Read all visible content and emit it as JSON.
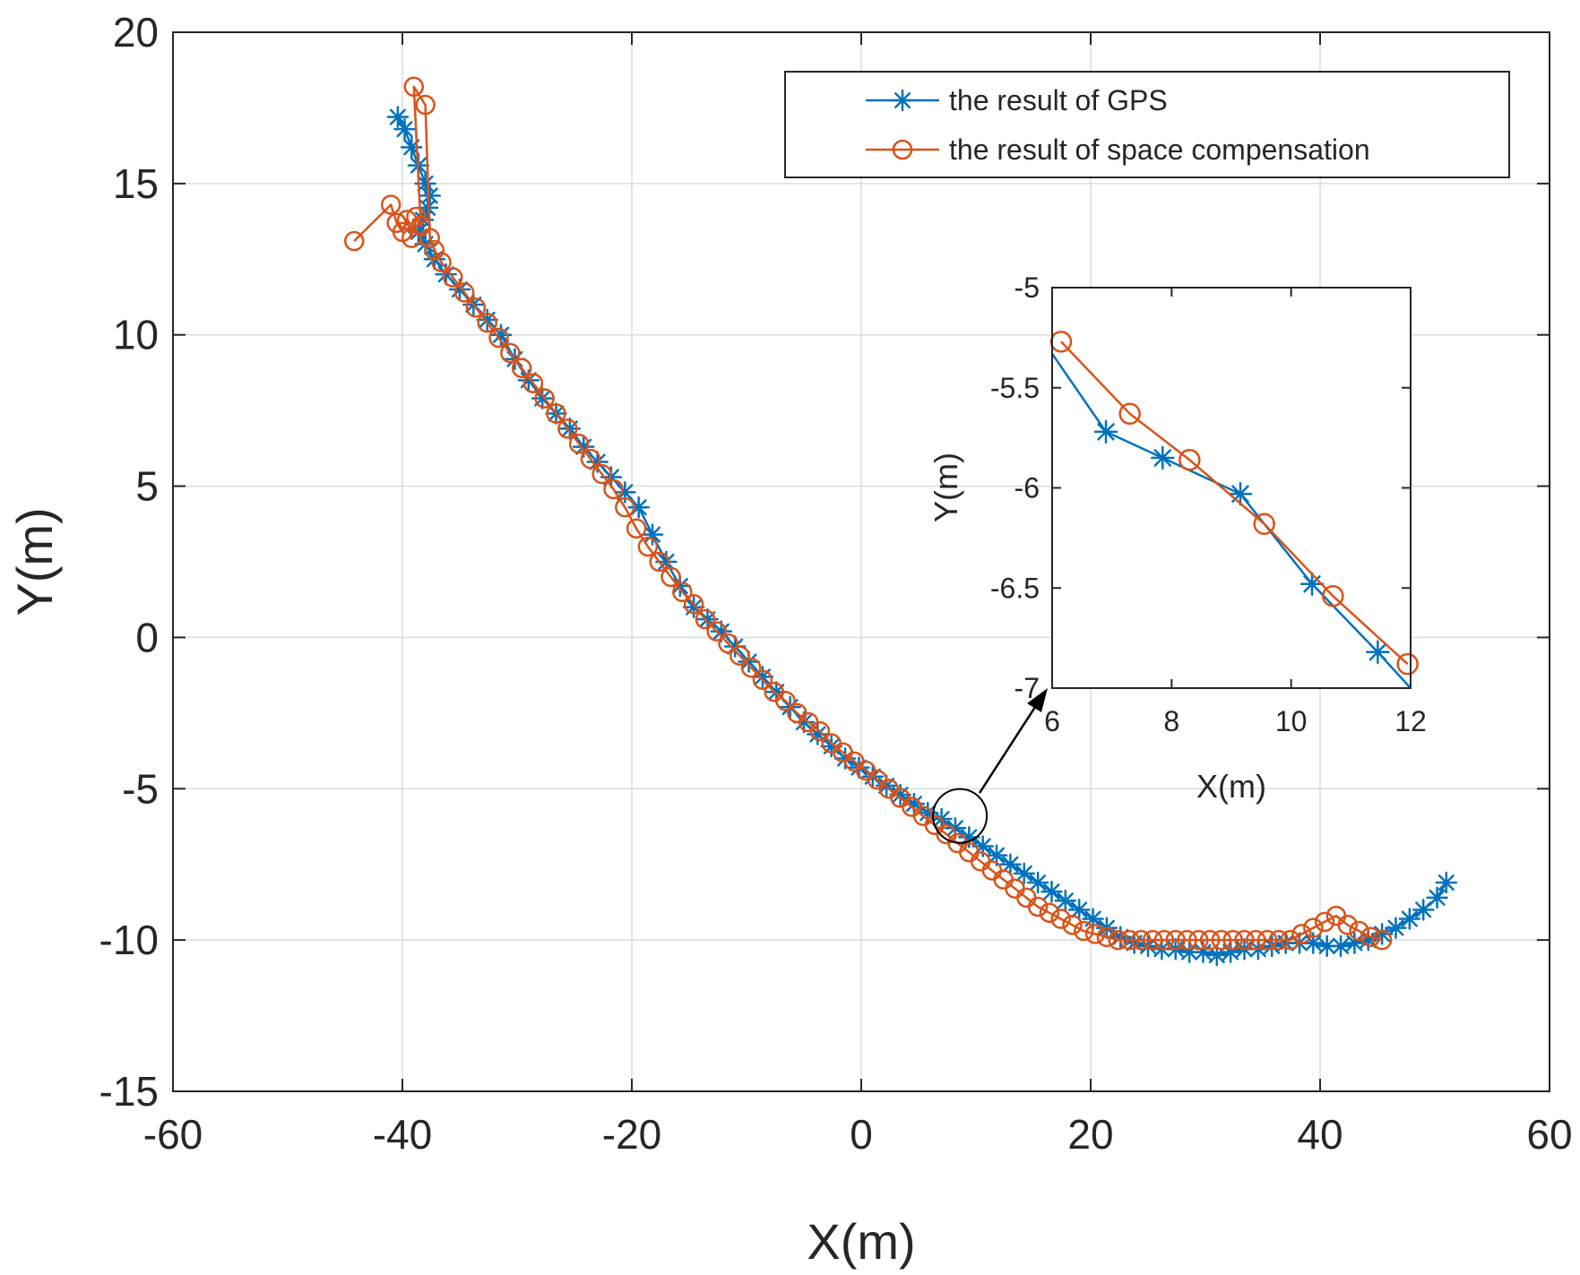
{
  "chart_data": [
    {
      "type": "line",
      "role": "main",
      "xlabel": "X(m)",
      "ylabel": "Y(m)",
      "xlim": [
        -60,
        60
      ],
      "ylim": [
        -15,
        20
      ],
      "xticks": [
        -60,
        -40,
        -20,
        0,
        20,
        40,
        60
      ],
      "yticks": [
        -15,
        -10,
        -5,
        0,
        5,
        10,
        15,
        20
      ],
      "grid": true,
      "legend": {
        "placement": "top-right"
      },
      "series": [
        {
          "name": "the result of GPS",
          "color": "#0072BD",
          "marker": "asterisk",
          "x": [
            -40.4,
            -39.8,
            -39.2,
            -38.6,
            -38.0,
            -37.6,
            -37.8,
            -38.2,
            -38.6,
            -38.0,
            -37.2,
            -36.2,
            -35.0,
            -33.8,
            -32.6,
            -31.4,
            -30.2,
            -29.0,
            -27.8,
            -26.6,
            -25.4,
            -24.2,
            -23.0,
            -21.8,
            -20.6,
            -19.4,
            -18.2,
            -17.0,
            -15.8,
            -14.6,
            -13.4,
            -12.2,
            -11.0,
            -9.8,
            -8.6,
            -7.4,
            -6.2,
            -5.0,
            -3.8,
            -2.6,
            -1.4,
            -0.2,
            1.0,
            2.2,
            3.4,
            4.6,
            5.8,
            7.0,
            8.2,
            9.4,
            10.6,
            11.8,
            13.0,
            14.2,
            15.4,
            16.6,
            17.8,
            19.0,
            20.2,
            21.4,
            22.6,
            23.8,
            25.0,
            26.2,
            27.4,
            28.6,
            29.8,
            31.0,
            32.2,
            33.4,
            34.6,
            35.8,
            37.0,
            38.2,
            39.4,
            40.6,
            41.8,
            43.0,
            44.2,
            45.4,
            46.6,
            47.8,
            49.0,
            50.2,
            51.0
          ],
          "y": [
            17.2,
            16.8,
            16.2,
            15.6,
            15.0,
            14.6,
            14.2,
            13.8,
            13.4,
            13.0,
            12.5,
            12.0,
            11.5,
            11.0,
            10.5,
            10.0,
            9.2,
            8.5,
            7.9,
            7.4,
            6.9,
            6.3,
            5.8,
            5.3,
            4.8,
            4.3,
            3.4,
            2.5,
            1.7,
            1.0,
            0.6,
            0.2,
            -0.3,
            -0.8,
            -1.3,
            -1.8,
            -2.3,
            -2.8,
            -3.2,
            -3.6,
            -4.0,
            -4.3,
            -4.6,
            -4.9,
            -5.2,
            -5.5,
            -5.8,
            -6.0,
            -6.3,
            -6.6,
            -6.9,
            -7.2,
            -7.5,
            -7.8,
            -8.1,
            -8.4,
            -8.7,
            -9.0,
            -9.3,
            -9.6,
            -9.9,
            -10.1,
            -10.2,
            -10.3,
            -10.3,
            -10.4,
            -10.4,
            -10.5,
            -10.4,
            -10.3,
            -10.3,
            -10.2,
            -10.1,
            -10.1,
            -10.1,
            -10.2,
            -10.2,
            -10.1,
            -10.0,
            -9.8,
            -9.6,
            -9.3,
            -9.0,
            -8.6,
            -8.1
          ]
        },
        {
          "name": "the result of space compensation",
          "color": "#D95319",
          "marker": "circle",
          "x": [
            -44.2,
            -41.0,
            -40.5,
            -40.0,
            -39.6,
            -39.2,
            -38.8,
            -38.4,
            -39.0,
            -38.0,
            -37.6,
            -37.2,
            -36.6,
            -35.6,
            -34.6,
            -33.6,
            -32.6,
            -31.6,
            -30.6,
            -29.6,
            -28.6,
            -27.6,
            -26.6,
            -25.6,
            -24.6,
            -23.6,
            -22.6,
            -21.6,
            -20.6,
            -19.6,
            -18.6,
            -17.6,
            -16.6,
            -15.6,
            -14.6,
            -13.6,
            -12.6,
            -11.6,
            -10.6,
            -9.6,
            -8.6,
            -7.6,
            -6.6,
            -5.6,
            -4.6,
            -3.6,
            -2.6,
            -1.6,
            -0.6,
            0.4,
            1.4,
            2.4,
            3.4,
            4.4,
            5.4,
            6.4,
            7.4,
            8.4,
            9.4,
            10.4,
            11.4,
            12.4,
            13.4,
            14.4,
            15.4,
            16.4,
            17.4,
            18.4,
            19.4,
            20.4,
            21.4,
            22.4,
            23.4,
            24.4,
            25.4,
            26.4,
            27.4,
            28.4,
            29.4,
            30.4,
            31.4,
            32.4,
            33.4,
            34.4,
            35.4,
            36.4,
            37.4,
            38.4,
            39.4,
            40.4,
            41.4,
            42.4,
            43.4,
            44.4,
            45.4
          ],
          "y": [
            13.1,
            14.3,
            13.7,
            13.4,
            13.8,
            13.2,
            13.9,
            13.6,
            18.2,
            17.6,
            13.2,
            12.8,
            12.4,
            11.9,
            11.4,
            10.9,
            10.4,
            9.9,
            9.4,
            8.9,
            8.4,
            7.9,
            7.4,
            6.9,
            6.4,
            5.9,
            5.4,
            4.9,
            4.3,
            3.6,
            3.0,
            2.5,
            2.0,
            1.5,
            1.1,
            0.6,
            0.2,
            -0.2,
            -0.6,
            -1.0,
            -1.4,
            -1.8,
            -2.1,
            -2.5,
            -2.8,
            -3.1,
            -3.5,
            -3.8,
            -4.1,
            -4.4,
            -4.7,
            -5.0,
            -5.3,
            -5.6,
            -5.9,
            -6.2,
            -6.5,
            -6.8,
            -7.1,
            -7.4,
            -7.7,
            -8.0,
            -8.3,
            -8.6,
            -8.9,
            -9.1,
            -9.3,
            -9.5,
            -9.7,
            -9.8,
            -9.9,
            -10.0,
            -10.0,
            -10.0,
            -10.0,
            -10.0,
            -10.0,
            -10.0,
            -10.0,
            -10.0,
            -10.0,
            -10.0,
            -10.0,
            -10.0,
            -10.0,
            -10.0,
            -10.0,
            -9.8,
            -9.6,
            -9.4,
            -9.2,
            -9.5,
            -9.7,
            -9.9,
            -10.0
          ]
        }
      ],
      "annotation": {
        "type": "circle",
        "center_data": [
          8.6,
          -5.9
        ]
      }
    },
    {
      "type": "line",
      "role": "inset",
      "xlabel": "X(m)",
      "ylabel": "Y(m)",
      "xlim": [
        6,
        12
      ],
      "ylim": [
        -7,
        -5
      ],
      "xticks": [
        6,
        8,
        10,
        12
      ],
      "yticks": [
        -7,
        -6.5,
        -6,
        -5.5,
        -5
      ],
      "ytick_labels": [
        "-7",
        "-6.5",
        "-6",
        "-5.5",
        "-5"
      ],
      "grid": false,
      "series": [
        {
          "name": "the result of GPS",
          "color": "#0072BD",
          "marker": "asterisk",
          "x": [
            6.0,
            6.9,
            7.85,
            9.15,
            10.35,
            11.45,
            12.0
          ],
          "y": [
            -5.33,
            -5.72,
            -5.85,
            -6.03,
            -6.48,
            -6.82,
            -7.0
          ],
          "marker_x": [
            6.9,
            7.85,
            9.15,
            10.35,
            11.45
          ],
          "marker_y": [
            -5.72,
            -5.85,
            -6.03,
            -6.48,
            -6.82
          ]
        },
        {
          "name": "the result of space compensation",
          "color": "#D95319",
          "marker": "circle",
          "x": [
            6.15,
            7.3,
            8.3,
            9.55,
            10.7,
            11.95
          ],
          "y": [
            -5.27,
            -5.63,
            -5.86,
            -6.18,
            -6.54,
            -6.88
          ]
        }
      ]
    }
  ]
}
